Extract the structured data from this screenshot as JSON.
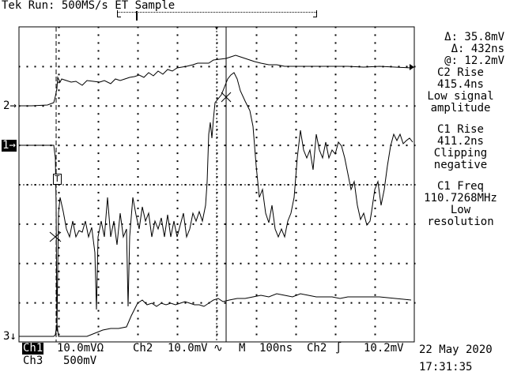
{
  "header": {
    "status": "Tek Run: 500MS/s ET Sample"
  },
  "channel_markers": {
    "ch2": "2",
    "ch1": "1",
    "ch3": "3"
  },
  "trigger_marker": "T",
  "readouts": {
    "delta_v": "Δ: 35.8mV",
    "delta_t": "Δ: 432ns",
    "at_v": "@: 12.2mV",
    "m1_title": "C2 Rise",
    "m1_value": "415.4ns",
    "m1_note1": "Low signal",
    "m1_note2": "amplitude",
    "m2_title": "C1 Rise",
    "m2_value": "411.2ns",
    "m2_note1": "Clipping",
    "m2_note2": "negative",
    "m3_title": "C1 Freq",
    "m3_value": "110.7268MHz",
    "m3_note1": "Low",
    "m3_note2": "resolution"
  },
  "footer": {
    "ch1_label": "Ch1",
    "ch1_scale": "10.0mVΩ",
    "ch2_label": "Ch2",
    "ch2_scale": "10.0mV",
    "ch2_coupling": "∿",
    "time_label": "M",
    "time_scale": "100ns",
    "trig_label": "Ch2",
    "trig_slope": "∫",
    "trig_level": "10.2mV",
    "ch3_label": "Ch3",
    "ch3_scale": "500mV",
    "date": "22 May 2020",
    "time": "17:31:35"
  },
  "colors": {
    "trace": "#000000",
    "background": "#ffffff",
    "grid": "#000000"
  }
}
